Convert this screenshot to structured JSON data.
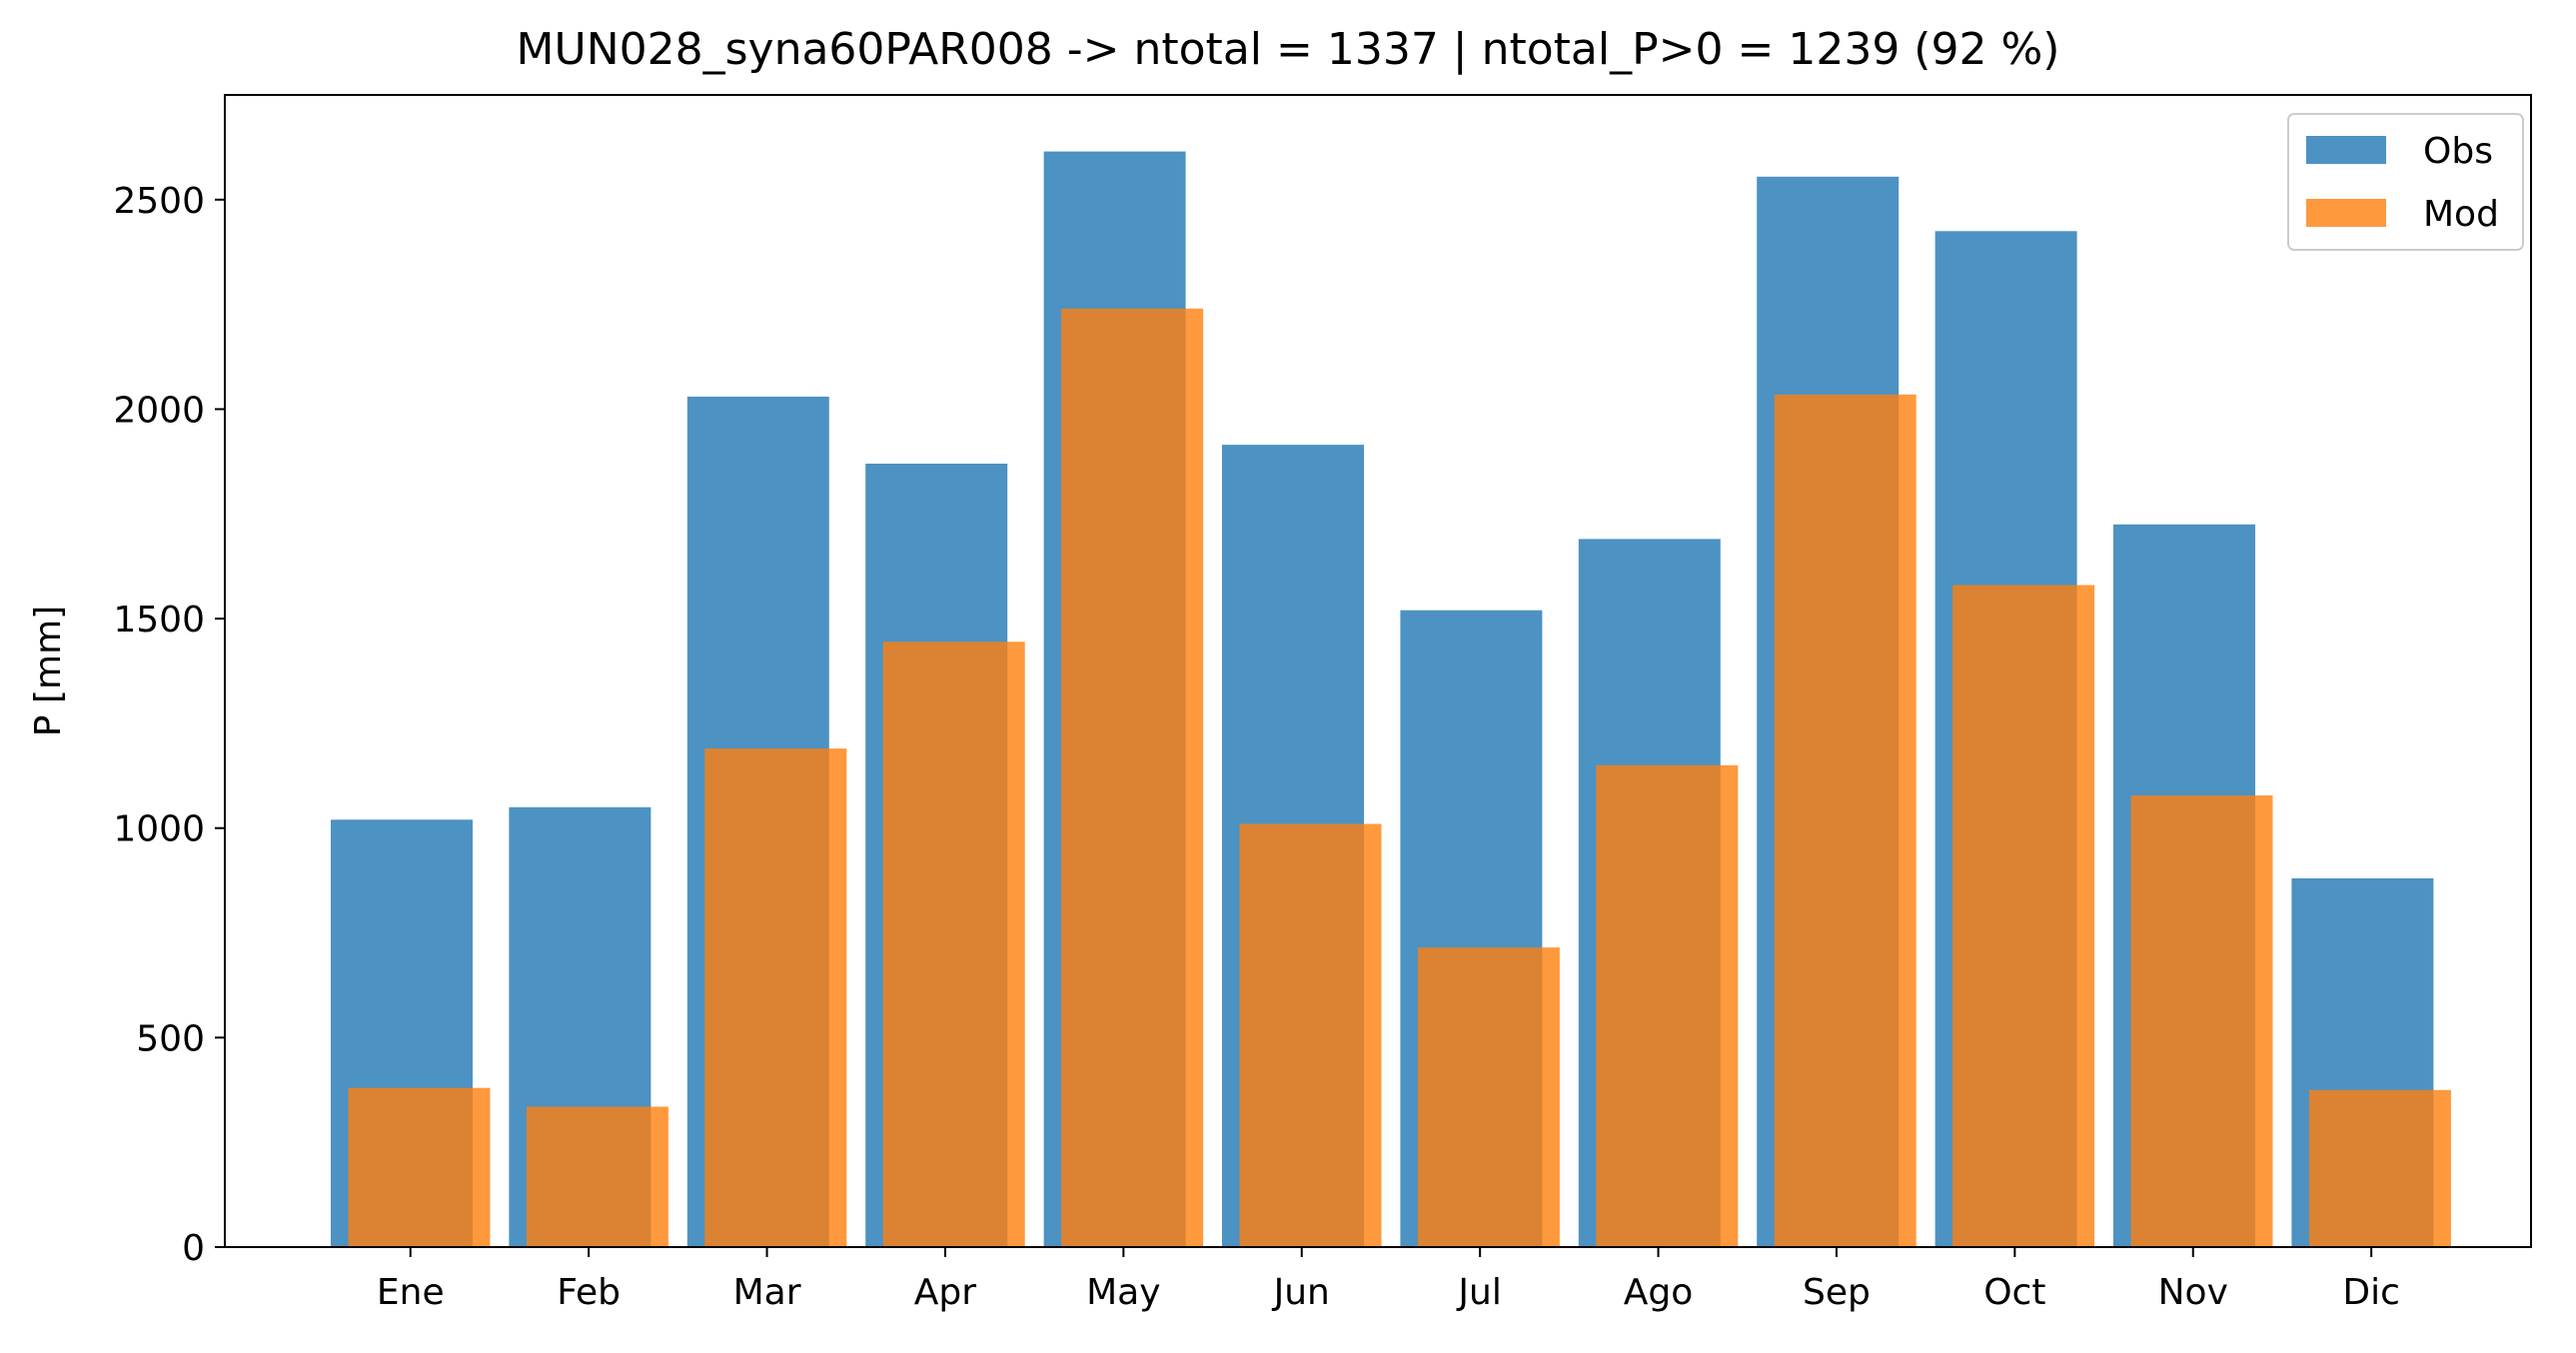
{
  "chart_data": {
    "type": "bar",
    "title": "MUN028_syna60PAR008 -> ntotal = 1337 | ntotal_P>0 = 1239 (92 %)",
    "xlabel": "",
    "ylabel": "P [mm]",
    "ylim": [
      0,
      2750
    ],
    "yticks": [
      0,
      500,
      1000,
      1500,
      2000,
      2500
    ],
    "categories": [
      "Ene",
      "Feb",
      "Mar",
      "Apr",
      "May",
      "Jun",
      "Jul",
      "Ago",
      "Sep",
      "Oct",
      "Nov",
      "Dic"
    ],
    "series": [
      {
        "name": "Obs",
        "color": "#1f77b4",
        "values": [
          1020,
          1050,
          2030,
          1870,
          2615,
          1915,
          1520,
          1690,
          2555,
          2425,
          1725,
          880
        ]
      },
      {
        "name": "Mod",
        "color": "#ff7f0e",
        "values": [
          380,
          335,
          1190,
          1445,
          2240,
          1010,
          715,
          1150,
          2035,
          1580,
          1078,
          375
        ]
      }
    ],
    "legend_position": "top-right",
    "grid": false
  }
}
